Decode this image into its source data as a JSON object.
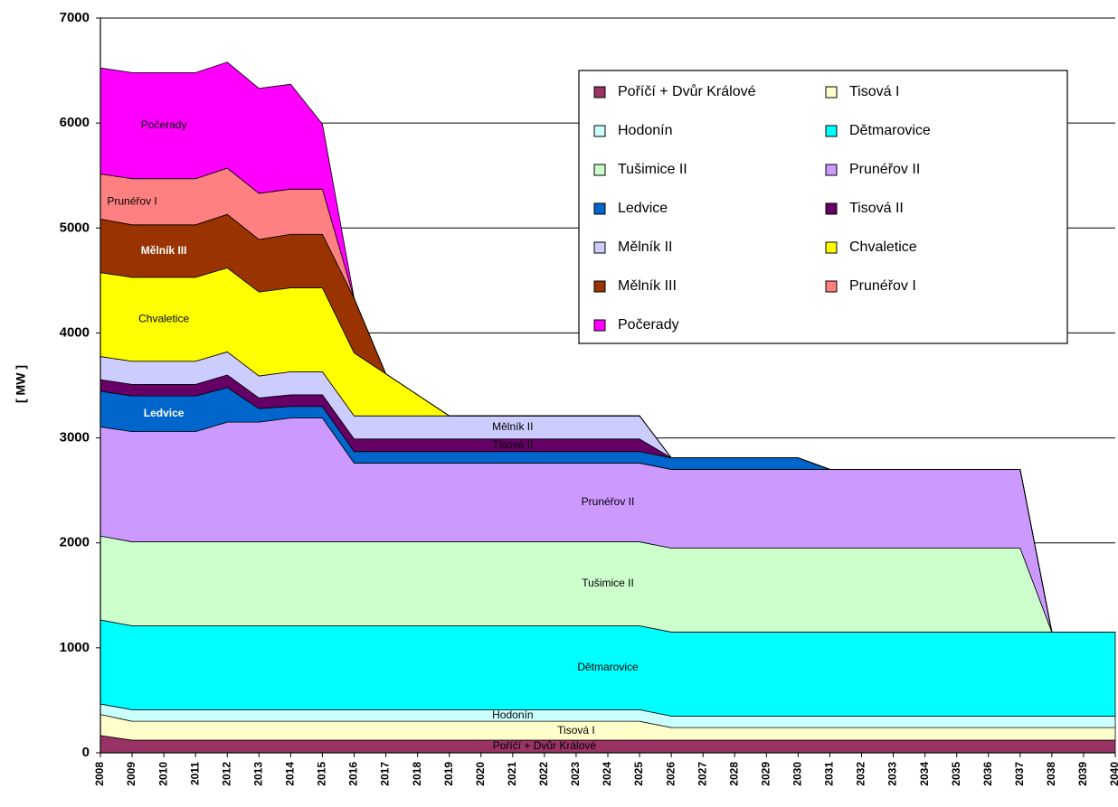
{
  "chart_data": {
    "type": "stacked_area",
    "y_label": "[ MW ]",
    "x": [
      2008,
      2009,
      2010,
      2011,
      2012,
      2013,
      2014,
      2015,
      2016,
      2017,
      2018,
      2019,
      2020,
      2021,
      2022,
      2023,
      2024,
      2025,
      2026,
      2027,
      2028,
      2029,
      2030,
      2031,
      2032,
      2033,
      2034,
      2035,
      2036,
      2037,
      2038,
      2039,
      2040
    ],
    "xlim": [
      2008,
      2040
    ],
    "ylim": [
      0,
      7000
    ],
    "yticks": [
      0,
      1000,
      2000,
      3000,
      4000,
      5000,
      6000,
      7000
    ],
    "grid": true,
    "legend": "upper right",
    "series": [
      {
        "name": "Poříčí + Dvůr Králové",
        "color": "#993366",
        "values": [
          165,
          120,
          120,
          120,
          120,
          120,
          120,
          120,
          120,
          120,
          120,
          120,
          120,
          120,
          120,
          120,
          120,
          120,
          120,
          120,
          120,
          120,
          120,
          120,
          120,
          120,
          120,
          120,
          120,
          120,
          120,
          120,
          120
        ]
      },
      {
        "name": "Tisová I",
        "color": "#ffffcc",
        "values": [
          200,
          180,
          180,
          180,
          180,
          180,
          180,
          180,
          180,
          180,
          180,
          180,
          180,
          180,
          180,
          180,
          180,
          180,
          120,
          120,
          120,
          120,
          120,
          120,
          120,
          120,
          120,
          120,
          120,
          120,
          120,
          120,
          120
        ]
      },
      {
        "name": "Hodonín",
        "color": "#ccffff",
        "values": [
          100,
          110,
          110,
          110,
          110,
          110,
          110,
          110,
          110,
          110,
          110,
          110,
          110,
          110,
          110,
          110,
          110,
          110,
          110,
          110,
          110,
          110,
          110,
          110,
          110,
          110,
          110,
          110,
          110,
          110,
          110,
          110,
          110
        ]
      },
      {
        "name": "Dětmarovice",
        "color": "#00ffff",
        "values": [
          800,
          800,
          800,
          800,
          800,
          800,
          800,
          800,
          800,
          800,
          800,
          800,
          800,
          800,
          800,
          800,
          800,
          800,
          800,
          800,
          800,
          800,
          800,
          800,
          800,
          800,
          800,
          800,
          800,
          800,
          800,
          800,
          800
        ]
      },
      {
        "name": "Tušimice II",
        "color": "#ccffcc",
        "values": [
          800,
          800,
          800,
          800,
          800,
          800,
          800,
          800,
          800,
          800,
          800,
          800,
          800,
          800,
          800,
          800,
          800,
          800,
          800,
          800,
          800,
          800,
          800,
          800,
          800,
          800,
          800,
          800,
          800,
          800,
          0,
          0,
          0
        ]
      },
      {
        "name": "Prunéřov II",
        "color": "#cc99ff",
        "values": [
          1040,
          1050,
          1050,
          1050,
          1140,
          1140,
          1180,
          1180,
          750,
          750,
          750,
          750,
          750,
          750,
          750,
          750,
          750,
          750,
          750,
          750,
          750,
          750,
          750,
          750,
          750,
          750,
          750,
          750,
          750,
          750,
          0,
          0,
          0
        ]
      },
      {
        "name": "Ledvice",
        "color": "#0066cc",
        "values": [
          340,
          340,
          340,
          340,
          330,
          130,
          110,
          110,
          110,
          110,
          110,
          110,
          110,
          110,
          110,
          110,
          110,
          110,
          110,
          110,
          110,
          110,
          110,
          0,
          0,
          0,
          0,
          0,
          0,
          0,
          0,
          0,
          0
        ]
      },
      {
        "name": "Tisová II",
        "color": "#660066",
        "values": [
          110,
          110,
          110,
          110,
          120,
          100,
          110,
          110,
          120,
          120,
          120,
          120,
          120,
          120,
          120,
          120,
          120,
          120,
          0,
          0,
          0,
          0,
          0,
          0,
          0,
          0,
          0,
          0,
          0,
          0,
          0,
          0,
          0
        ]
      },
      {
        "name": "Mělník II",
        "color": "#ccccff",
        "values": [
          220,
          220,
          220,
          220,
          220,
          210,
          220,
          220,
          220,
          220,
          220,
          220,
          220,
          220,
          220,
          220,
          220,
          220,
          0,
          0,
          0,
          0,
          0,
          0,
          0,
          0,
          0,
          0,
          0,
          0,
          0,
          0,
          0
        ]
      },
      {
        "name": "Chvaletice",
        "color": "#ffff00",
        "values": [
          800,
          800,
          800,
          800,
          800,
          800,
          800,
          800,
          600,
          400,
          200,
          0,
          0,
          0,
          0,
          0,
          0,
          0,
          0,
          0,
          0,
          0,
          0,
          0,
          0,
          0,
          0,
          0,
          0,
          0,
          0,
          0,
          0
        ]
      },
      {
        "name": "Mělník III",
        "color": "#993300",
        "values": [
          510,
          500,
          500,
          500,
          510,
          500,
          510,
          510,
          520,
          0,
          0,
          0,
          0,
          0,
          0,
          0,
          0,
          0,
          0,
          0,
          0,
          0,
          0,
          0,
          0,
          0,
          0,
          0,
          0,
          0,
          0,
          0,
          0
        ]
      },
      {
        "name": "Prunéřov I",
        "color": "#ff8080",
        "values": [
          430,
          440,
          440,
          440,
          440,
          440,
          430,
          430,
          0,
          0,
          0,
          0,
          0,
          0,
          0,
          0,
          0,
          0,
          0,
          0,
          0,
          0,
          0,
          0,
          0,
          0,
          0,
          0,
          0,
          0,
          0,
          0,
          0
        ]
      },
      {
        "name": "Počerady",
        "color": "#ff00ff",
        "values": [
          1010,
          1010,
          1010,
          1010,
          1010,
          1000,
          1000,
          620,
          0,
          0,
          0,
          0,
          0,
          0,
          0,
          0,
          0,
          0,
          0,
          0,
          0,
          0,
          0,
          0,
          0,
          0,
          0,
          0,
          0,
          0,
          0,
          0,
          0
        ]
      }
    ]
  }
}
